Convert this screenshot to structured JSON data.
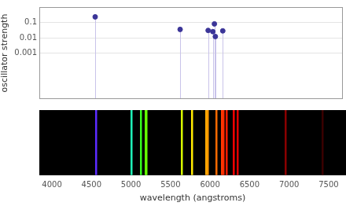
{
  "chart_data": [
    {
      "type": "stem",
      "x": [
        4554,
        5640,
        5998,
        6058,
        6078,
        6090,
        6185
      ],
      "values": [
        0.23,
        0.035,
        0.03,
        0.025,
        0.08,
        0.012,
        0.028
      ],
      "ylabel": "oscillator strength",
      "log": "y",
      "xlim": [
        3840,
        7720
      ],
      "ylim": [
        1e-06,
        1
      ],
      "yticks": [
        0.001,
        0.01,
        0.1
      ],
      "grid": true,
      "tick_labels": "y",
      "color": "#3b3598"
    },
    {
      "type": "spectrum",
      "x": [
        4554,
        5004,
        5123,
        5185,
        5197,
        5640,
        5770,
        5950,
        5970,
        6080,
        6150,
        6165,
        6210,
        6300,
        6350,
        6950,
        7420
      ],
      "colors": [
        "#5b2bff",
        "#1fffb8",
        "#34ff1f",
        "#5cff00",
        "#66ff00",
        "#d9ff00",
        "#ffea00",
        "#ffa800",
        "#ff9900",
        "#ff6a00",
        "#ff3a00",
        "#ff2a00",
        "#ff1a00",
        "#ff0000",
        "#e00000",
        "#8a0000",
        "#3a0000"
      ],
      "xlabel": "wavelength (angstroms)",
      "xlim": [
        3840,
        7720
      ],
      "xticks": [
        4000,
        4500,
        5000,
        5500,
        6000,
        6500,
        7000,
        7500
      ],
      "tick_labels": "x"
    }
  ]
}
